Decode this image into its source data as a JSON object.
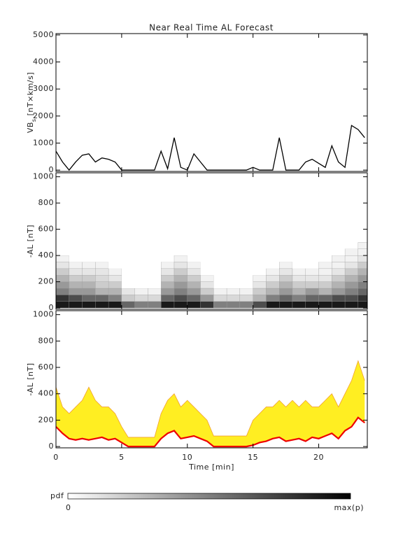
{
  "chart_data": [
    {
      "type": "line",
      "title": "Near Real Time AL Forecast",
      "ylabel": [
        "VB",
        "s",
        " [nT×km/s]"
      ],
      "xlim": [
        0,
        23.7
      ],
      "ylim": [
        -50,
        5050
      ],
      "yticks": [
        0,
        1000,
        2000,
        3000,
        4000,
        5000
      ],
      "color": "#000000",
      "x": [
        0,
        0.5,
        1,
        1.5,
        2,
        2.5,
        3,
        3.5,
        4,
        4.5,
        5,
        5.5,
        6,
        6.5,
        7,
        7.5,
        8,
        8.5,
        9,
        9.5,
        10,
        10.5,
        11,
        11.5,
        12,
        12.5,
        13,
        13.5,
        14,
        14.5,
        15,
        15.5,
        16,
        16.5,
        17,
        17.5,
        18,
        18.5,
        19,
        19.5,
        20,
        20.5,
        21,
        21.5,
        22,
        22.5,
        23,
        23.5
      ],
      "values": [
        700,
        300,
        0,
        300,
        550,
        600,
        300,
        450,
        400,
        300,
        0,
        0,
        0,
        0,
        0,
        0,
        700,
        50,
        1200,
        100,
        0,
        600,
        300,
        0,
        0,
        0,
        0,
        0,
        0,
        0,
        100,
        0,
        0,
        0,
        1200,
        0,
        0,
        0,
        300,
        400,
        250,
        100,
        900,
        300,
        100,
        1650,
        1500,
        1200
      ]
    },
    {
      "type": "heatmap",
      "ylabel": "-AL [nT]",
      "xlim": [
        0,
        23.7
      ],
      "ylim": [
        -10,
        1030
      ],
      "yticks": [
        0,
        200,
        400,
        600,
        800,
        1000
      ],
      "x": [
        0,
        1,
        2,
        3,
        4,
        5,
        6,
        7,
        8,
        9,
        10,
        11,
        12,
        13,
        14,
        15,
        16,
        17,
        18,
        19,
        20,
        21,
        22,
        23,
        23.7
      ],
      "bins": [
        0,
        50,
        100,
        150,
        200,
        250,
        300,
        350,
        400,
        450,
        500
      ],
      "values": [
        [
          0.9,
          0.8,
          0.5,
          0.4,
          0.3,
          0.2,
          0.1,
          0.05,
          0,
          0
        ],
        [
          0.9,
          0.7,
          0.4,
          0.3,
          0.2,
          0.1,
          0.05,
          0,
          0,
          0
        ],
        [
          0.9,
          0.6,
          0.4,
          0.3,
          0.2,
          0.1,
          0.05,
          0,
          0,
          0
        ],
        [
          0.9,
          0.6,
          0.3,
          0.2,
          0.15,
          0.1,
          0.05,
          0,
          0,
          0
        ],
        [
          0.9,
          0.5,
          0.3,
          0.2,
          0.1,
          0.05,
          0,
          0,
          0,
          0
        ],
        [
          0.6,
          0.2,
          0.1,
          0,
          0,
          0,
          0,
          0,
          0,
          0
        ],
        [
          0.5,
          0.15,
          0.05,
          0,
          0,
          0,
          0,
          0,
          0,
          0
        ],
        [
          0.5,
          0.15,
          0.05,
          0,
          0,
          0,
          0,
          0,
          0,
          0
        ],
        [
          0.9,
          0.6,
          0.4,
          0.3,
          0.2,
          0.1,
          0.05,
          0,
          0,
          0
        ],
        [
          0.9,
          0.7,
          0.5,
          0.4,
          0.3,
          0.2,
          0.1,
          0.05,
          0,
          0
        ],
        [
          0.9,
          0.6,
          0.4,
          0.3,
          0.2,
          0.1,
          0.05,
          0,
          0,
          0
        ],
        [
          0.8,
          0.4,
          0.2,
          0.1,
          0.05,
          0,
          0,
          0,
          0,
          0
        ],
        [
          0.5,
          0.15,
          0.05,
          0,
          0,
          0,
          0,
          0,
          0,
          0
        ],
        [
          0.5,
          0.15,
          0.05,
          0,
          0,
          0,
          0,
          0,
          0,
          0
        ],
        [
          0.5,
          0.15,
          0.05,
          0,
          0,
          0,
          0,
          0,
          0,
          0
        ],
        [
          0.7,
          0.3,
          0.2,
          0.1,
          0.05,
          0,
          0,
          0,
          0,
          0
        ],
        [
          0.9,
          0.5,
          0.3,
          0.2,
          0.1,
          0.05,
          0,
          0,
          0,
          0
        ],
        [
          0.9,
          0.6,
          0.4,
          0.3,
          0.2,
          0.1,
          0.05,
          0,
          0,
          0
        ],
        [
          0.9,
          0.5,
          0.3,
          0.2,
          0.1,
          0.05,
          0,
          0,
          0,
          0
        ],
        [
          0.9,
          0.6,
          0.4,
          0.2,
          0.1,
          0.05,
          0,
          0,
          0,
          0
        ],
        [
          0.9,
          0.6,
          0.3,
          0.2,
          0.1,
          0.05,
          0.05,
          0,
          0,
          0
        ],
        [
          0.9,
          0.7,
          0.4,
          0.3,
          0.2,
          0.1,
          0.05,
          0.05,
          0,
          0
        ],
        [
          0.9,
          0.7,
          0.5,
          0.4,
          0.3,
          0.2,
          0.1,
          0.05,
          0.05,
          0
        ],
        [
          0.9,
          0.8,
          0.6,
          0.5,
          0.4,
          0.3,
          0.2,
          0.1,
          0.05,
          0.05
        ]
      ]
    },
    {
      "type": "band",
      "ylabel": "-AL [nT]",
      "xlabel": "Time [min]",
      "xlim": [
        0,
        23.7
      ],
      "xticks": [
        0,
        5,
        10,
        15,
        20
      ],
      "ylim": [
        -10,
        1030
      ],
      "yticks": [
        0,
        200,
        400,
        600,
        800,
        1000
      ],
      "color": "#ee0000",
      "band_color": "#ffee22",
      "edge_color": "#f0a030",
      "x": [
        0,
        0.5,
        1,
        1.5,
        2,
        2.5,
        3,
        3.5,
        4,
        4.5,
        5,
        5.5,
        6,
        6.5,
        7,
        7.5,
        8,
        8.5,
        9,
        9.5,
        10,
        10.5,
        11,
        11.5,
        12,
        12.5,
        13,
        13.5,
        14,
        14.5,
        15,
        15.5,
        16,
        16.5,
        17,
        17.5,
        18,
        18.5,
        19,
        19.5,
        20,
        20.5,
        21,
        21.5,
        22,
        22.5,
        23,
        23.5
      ],
      "values": [
        150,
        100,
        60,
        50,
        60,
        50,
        60,
        70,
        50,
        60,
        30,
        0,
        0,
        0,
        0,
        0,
        60,
        100,
        120,
        60,
        70,
        80,
        60,
        40,
        0,
        0,
        0,
        0,
        0,
        0,
        10,
        30,
        40,
        60,
        70,
        40,
        50,
        60,
        40,
        70,
        60,
        80,
        100,
        60,
        120,
        150,
        220,
        180
      ],
      "upper": [
        450,
        300,
        250,
        300,
        350,
        450,
        350,
        300,
        300,
        250,
        150,
        70,
        70,
        70,
        70,
        70,
        250,
        350,
        400,
        300,
        350,
        300,
        250,
        200,
        80,
        80,
        80,
        80,
        80,
        80,
        200,
        250,
        300,
        300,
        350,
        300,
        350,
        300,
        350,
        300,
        300,
        350,
        400,
        300,
        400,
        500,
        650,
        500
      ]
    }
  ],
  "colorbar": {
    "label": "pdf",
    "min_label": "0",
    "max_label": "max(p)"
  }
}
